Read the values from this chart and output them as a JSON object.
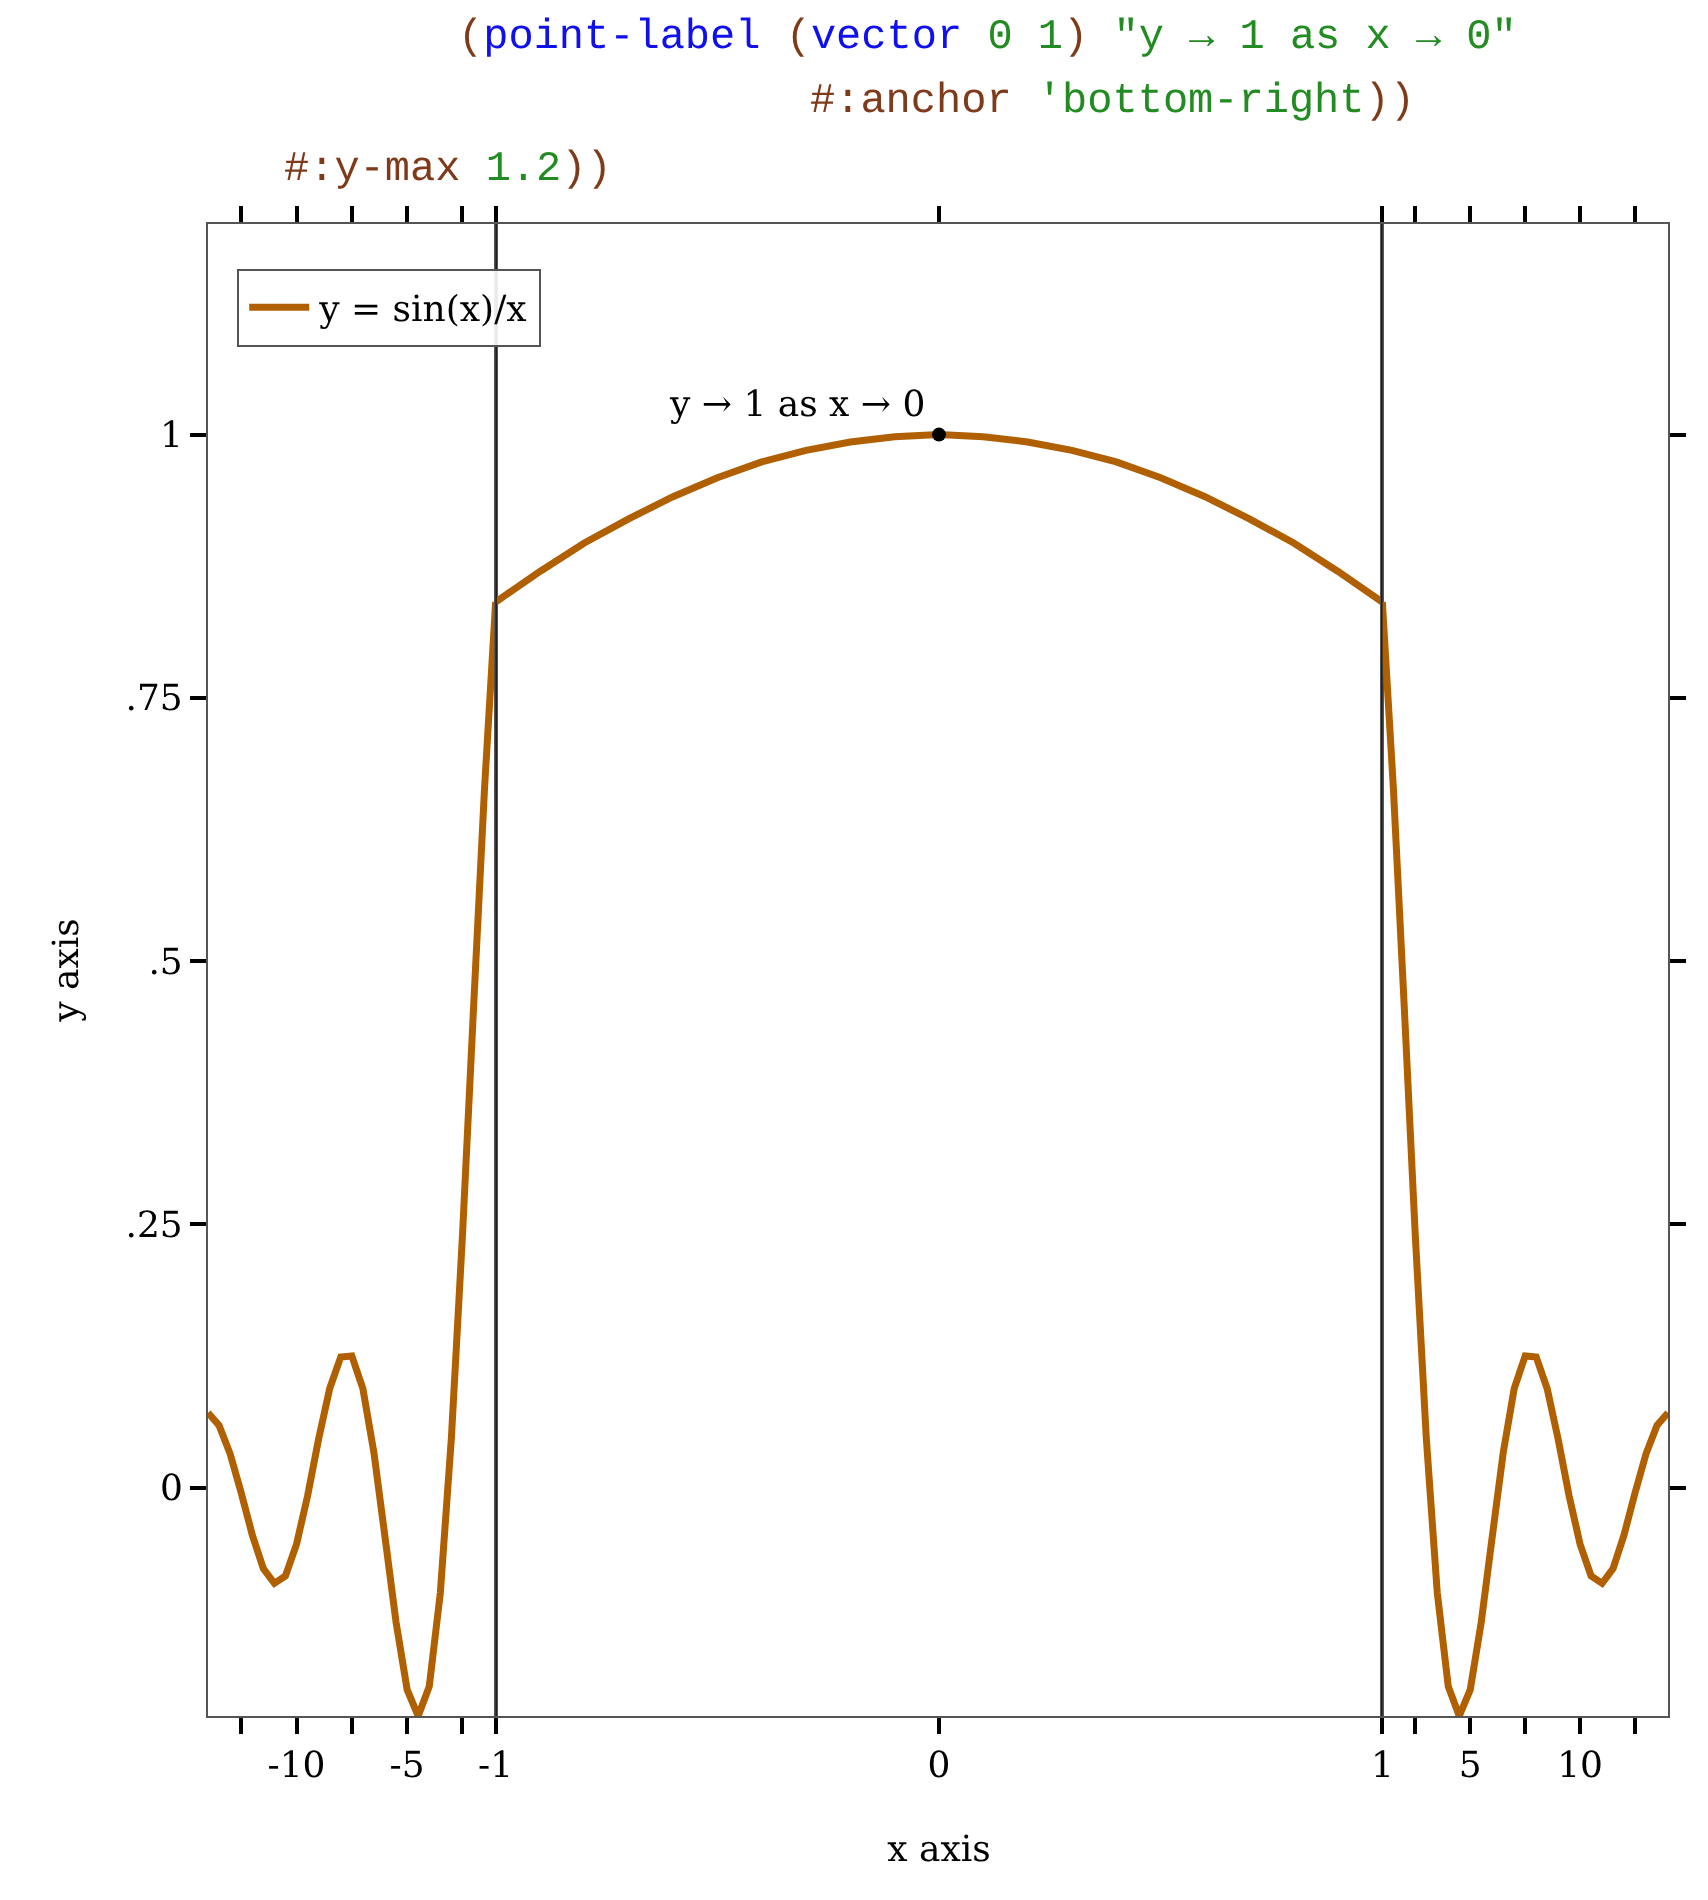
{
  "chart_data": [
    {
      "type": "line",
      "ylabel": "y axis",
      "x": [
        -14,
        -13.5,
        -13,
        -12.5,
        -12,
        -11.5,
        -11,
        -10.5,
        -10,
        -9.5,
        -9,
        -8.5,
        -8,
        -7.5,
        -7,
        -6.5,
        -6,
        -5.5,
        -5,
        -4.5,
        -4,
        -3.5,
        -3,
        -2.5,
        -2,
        -1.5,
        -1
      ],
      "series": [
        {
          "color": "#b06000",
          "values": [
            0.071,
            0.059,
            0.032,
            -0.005,
            -0.045,
            -0.077,
            -0.091,
            -0.084,
            -0.054,
            -0.008,
            0.046,
            0.094,
            0.124,
            0.125,
            0.094,
            0.033,
            -0.047,
            -0.128,
            -0.192,
            -0.217,
            -0.189,
            -0.1,
            0.047,
            0.239,
            0.455,
            0.665,
            0.841
          ]
        }
      ],
      "xlim": [
        -14,
        -1
      ],
      "xticks": [
        {
          "value": -12.5,
          "label": null
        },
        -10,
        {
          "value": -7.5,
          "label": null
        },
        -5,
        {
          "value": -2.5,
          "label": null
        }
      ],
      "ylim": [
        -0.217,
        1.2
      ],
      "yticks": [
        0,
        {
          "value": 0.25,
          "label": ".25"
        },
        {
          "value": 0.5,
          "label": ".5"
        },
        {
          "value": 0.75,
          "label": ".75"
        },
        1
      ],
      "annotations": [
        "#:y-max 1.2))"
      ],
      "grid": false,
      "line_style": "solid"
    },
    {
      "type": "line",
      "xlabel": "x axis",
      "x": [
        -1,
        -0.9,
        -0.8,
        -0.7,
        -0.6,
        -0.5,
        -0.4,
        -0.3,
        -0.2,
        -0.1,
        0,
        0.1,
        0.2,
        0.3,
        0.4,
        0.5,
        0.6,
        0.7,
        0.8,
        0.9,
        1
      ],
      "series": [
        {
          "name": "y = sin(x)/x",
          "color": "#b06000",
          "values": [
            0.841,
            0.87,
            0.897,
            0.92,
            0.941,
            0.959,
            0.974,
            0.985,
            0.993,
            0.998,
            1,
            0.998,
            0.993,
            0.985,
            0.974,
            0.959,
            0.941,
            0.92,
            0.897,
            0.87,
            0.841
          ]
        },
        {
          "type": "scatter",
          "color": "#000000",
          "x": [
            0
          ],
          "values": [
            1
          ]
        }
      ],
      "xlim": [
        -1,
        1
      ],
      "xticks": [
        -1,
        0,
        1
      ],
      "ylim": [
        -0.217,
        1.2
      ],
      "tick_labels": "x",
      "annotations": [
        "(point-label (vector 0 1) \"y → 1 as x → 0\"",
        "#:anchor 'bottom-right))",
        {
          "text": "y → 1 as x → 0",
          "x": 0,
          "y": 1
        }
      ],
      "ref_lines": [
        {
          "axis": "x",
          "value": -1,
          "color": "#000000"
        },
        {
          "axis": "x",
          "value": 1,
          "color": "#000000"
        }
      ],
      "legend": "top left",
      "grid": false,
      "line_style": "solid"
    },
    {
      "type": "line",
      "x": [
        1,
        1.5,
        2,
        2.5,
        3,
        3.5,
        4,
        4.5,
        5,
        5.5,
        6,
        6.5,
        7,
        7.5,
        8,
        8.5,
        9,
        9.5,
        10,
        10.5,
        11,
        11.5,
        12,
        12.5,
        13,
        13.5,
        14
      ],
      "series": [
        {
          "color": "#b06000",
          "values": [
            0.841,
            0.665,
            0.455,
            0.239,
            0.047,
            -0.1,
            -0.189,
            -0.217,
            -0.192,
            -0.128,
            -0.047,
            0.033,
            0.094,
            0.125,
            0.124,
            0.094,
            0.046,
            -0.008,
            -0.054,
            -0.084,
            -0.091,
            -0.077,
            -0.045,
            -0.005,
            0.032,
            0.059,
            0.071
          ]
        }
      ],
      "xlim": [
        1,
        14
      ],
      "xticks": [
        {
          "value": 2.5,
          "label": null
        },
        5,
        {
          "value": 7.5,
          "label": null
        },
        10,
        {
          "value": 12.5,
          "label": null
        }
      ],
      "ylim": [
        -0.217,
        1.2
      ],
      "yticks": [
        {
          "value": 0,
          "label": null
        },
        {
          "value": 0.25,
          "label": null
        },
        {
          "value": 0.5,
          "label": null
        },
        {
          "value": 0.75,
          "label": null
        },
        {
          "value": 1,
          "label": null
        }
      ],
      "tick_labels": "x",
      "grid": false,
      "line_style": "solid"
    }
  ]
}
